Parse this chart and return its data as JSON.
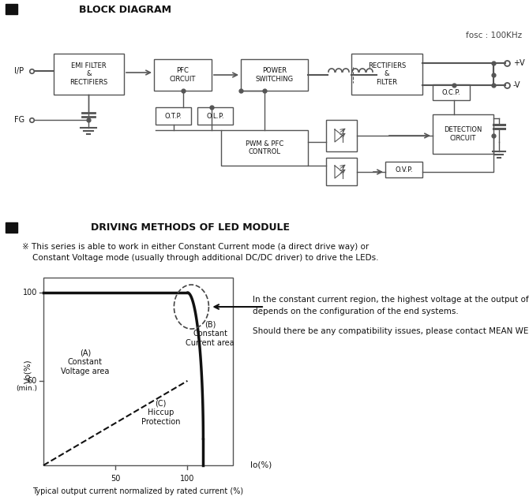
{
  "title_block": "BLOCK DIAGRAM",
  "title_driving": "DRIVING METHODS OF LED MODULE",
  "fosc_text": "fosc : 100KHz",
  "bg_color": "#ffffff",
  "lc": "#555555",
  "driving_text1": "※ This series is able to work in either Constant Current mode (a direct drive way) or",
  "driving_text2": "    Constant Voltage mode (usually through additional DC/DC driver) to drive the LEDs.",
  "right_text1": "In the constant current region, the highest voltage at the output of the driver",
  "right_text2": "depends on the configuration of the end systems.",
  "right_text3": "Should there be any compatibility issues, please contact MEAN WELL.",
  "graph_caption": "Typical output current normalized by rated current (%)"
}
